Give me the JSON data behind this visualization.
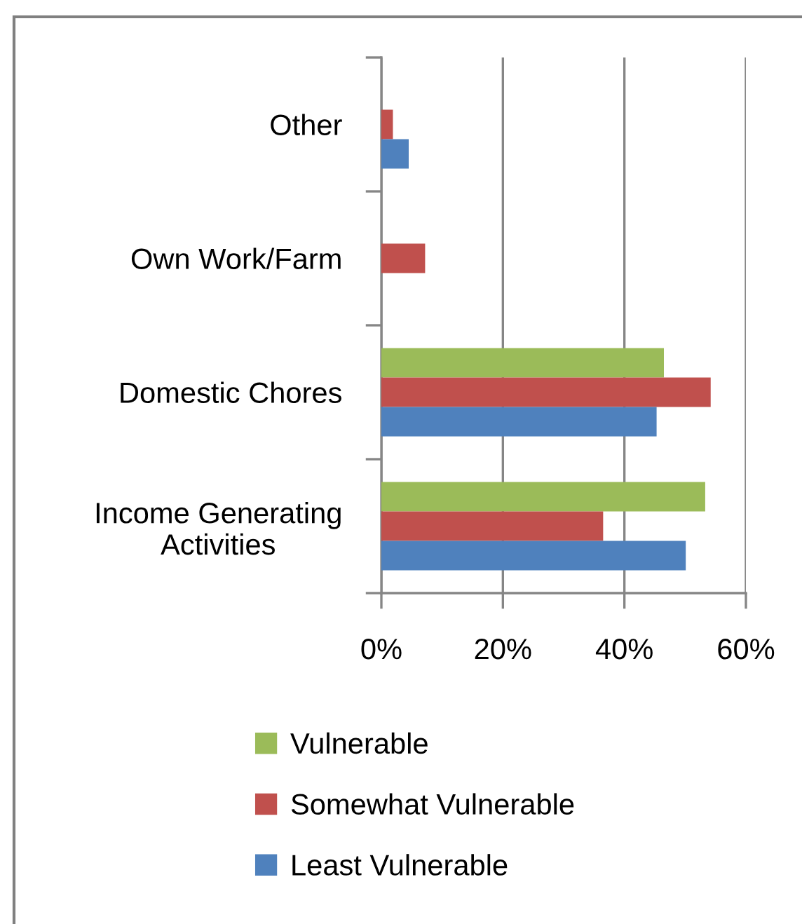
{
  "chart_data": {
    "type": "bar",
    "orientation": "horizontal",
    "categories": [
      "Other",
      "Own Work/Farm",
      "Domestic Chores",
      "Income Generating\nActivities"
    ],
    "series": [
      {
        "name": "Vulnerable",
        "color": "#9bbb59",
        "values": [
          0,
          0,
          46.5,
          53.3
        ]
      },
      {
        "name": "Somewhat Vulnerable",
        "color": "#c0504d",
        "values": [
          1.9,
          7.2,
          54.2,
          36.5
        ]
      },
      {
        "name": "Least Vulnerable",
        "color": "#4f81bd",
        "values": [
          4.5,
          0,
          45.3,
          50.1
        ]
      }
    ],
    "xlim": [
      0,
      60
    ],
    "xticks": [
      {
        "value": 0,
        "label": "0%"
      },
      {
        "value": 20,
        "label": "20%"
      },
      {
        "value": 40,
        "label": "40%"
      },
      {
        "value": 60,
        "label": "60%"
      }
    ],
    "grid": "x",
    "legend": "bottom"
  }
}
